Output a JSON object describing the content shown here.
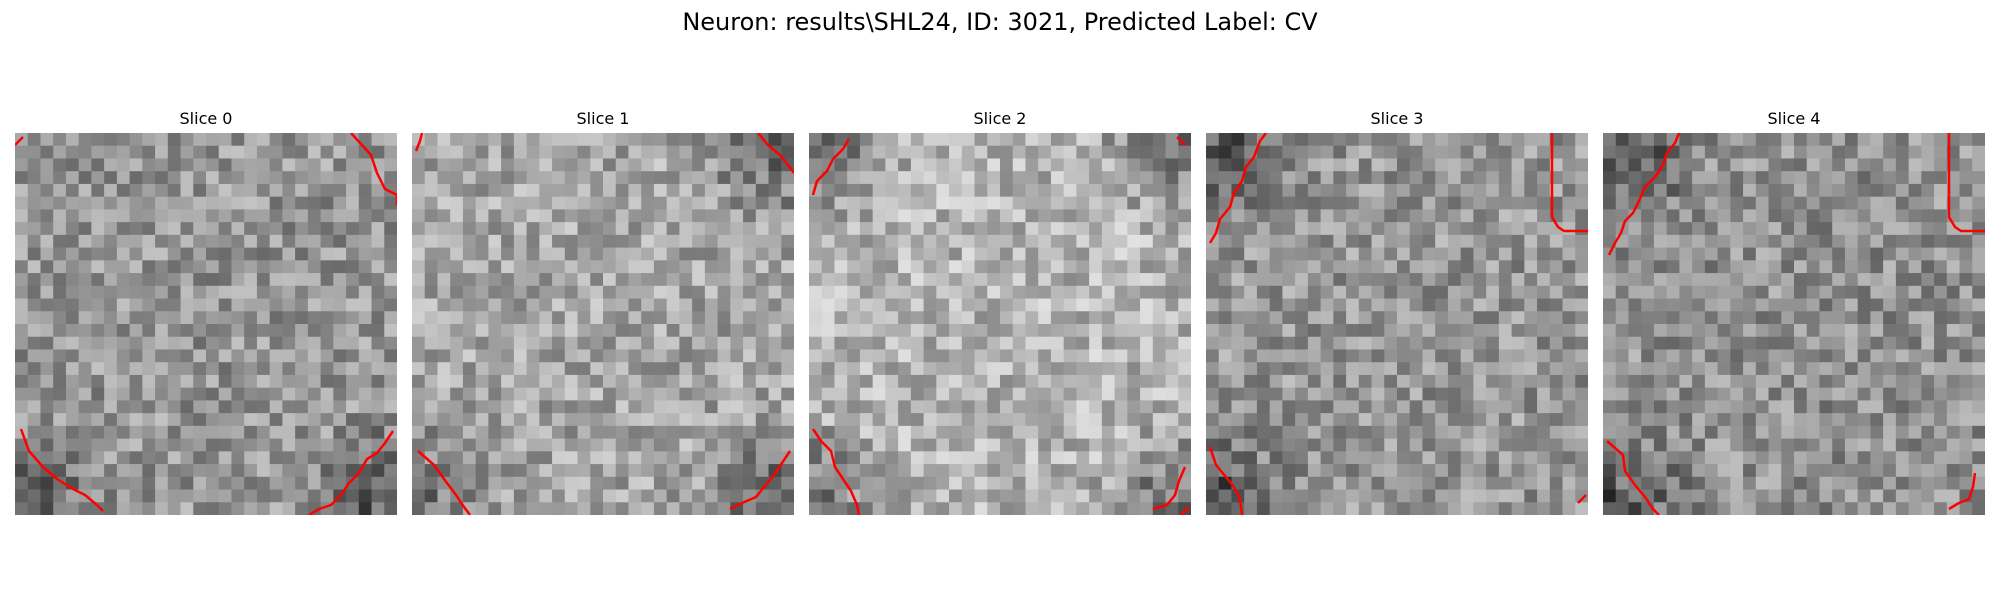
{
  "figure": {
    "title": "Neuron: results\\SHL24, ID: 3021, Predicted Label: CV"
  },
  "colors": {
    "contour": "#ff0000",
    "background": "#ffffff"
  },
  "panels": [
    {
      "title": "Slice 0",
      "mean_gray": 150,
      "dark_corners": [
        "bl",
        "br"
      ]
    },
    {
      "title": "Slice 1",
      "mean_gray": 165,
      "dark_corners": [
        "bl",
        "br",
        "tr"
      ]
    },
    {
      "title": "Slice 2",
      "mean_gray": 180,
      "dark_corners": [
        "tl",
        "tr",
        "bl",
        "br"
      ]
    },
    {
      "title": "Slice 3",
      "mean_gray": 150,
      "dark_corners": [
        "tl",
        "bl"
      ]
    },
    {
      "title": "Slice 4",
      "mean_gray": 145,
      "dark_corners": [
        "tl",
        "bl"
      ]
    }
  ]
}
